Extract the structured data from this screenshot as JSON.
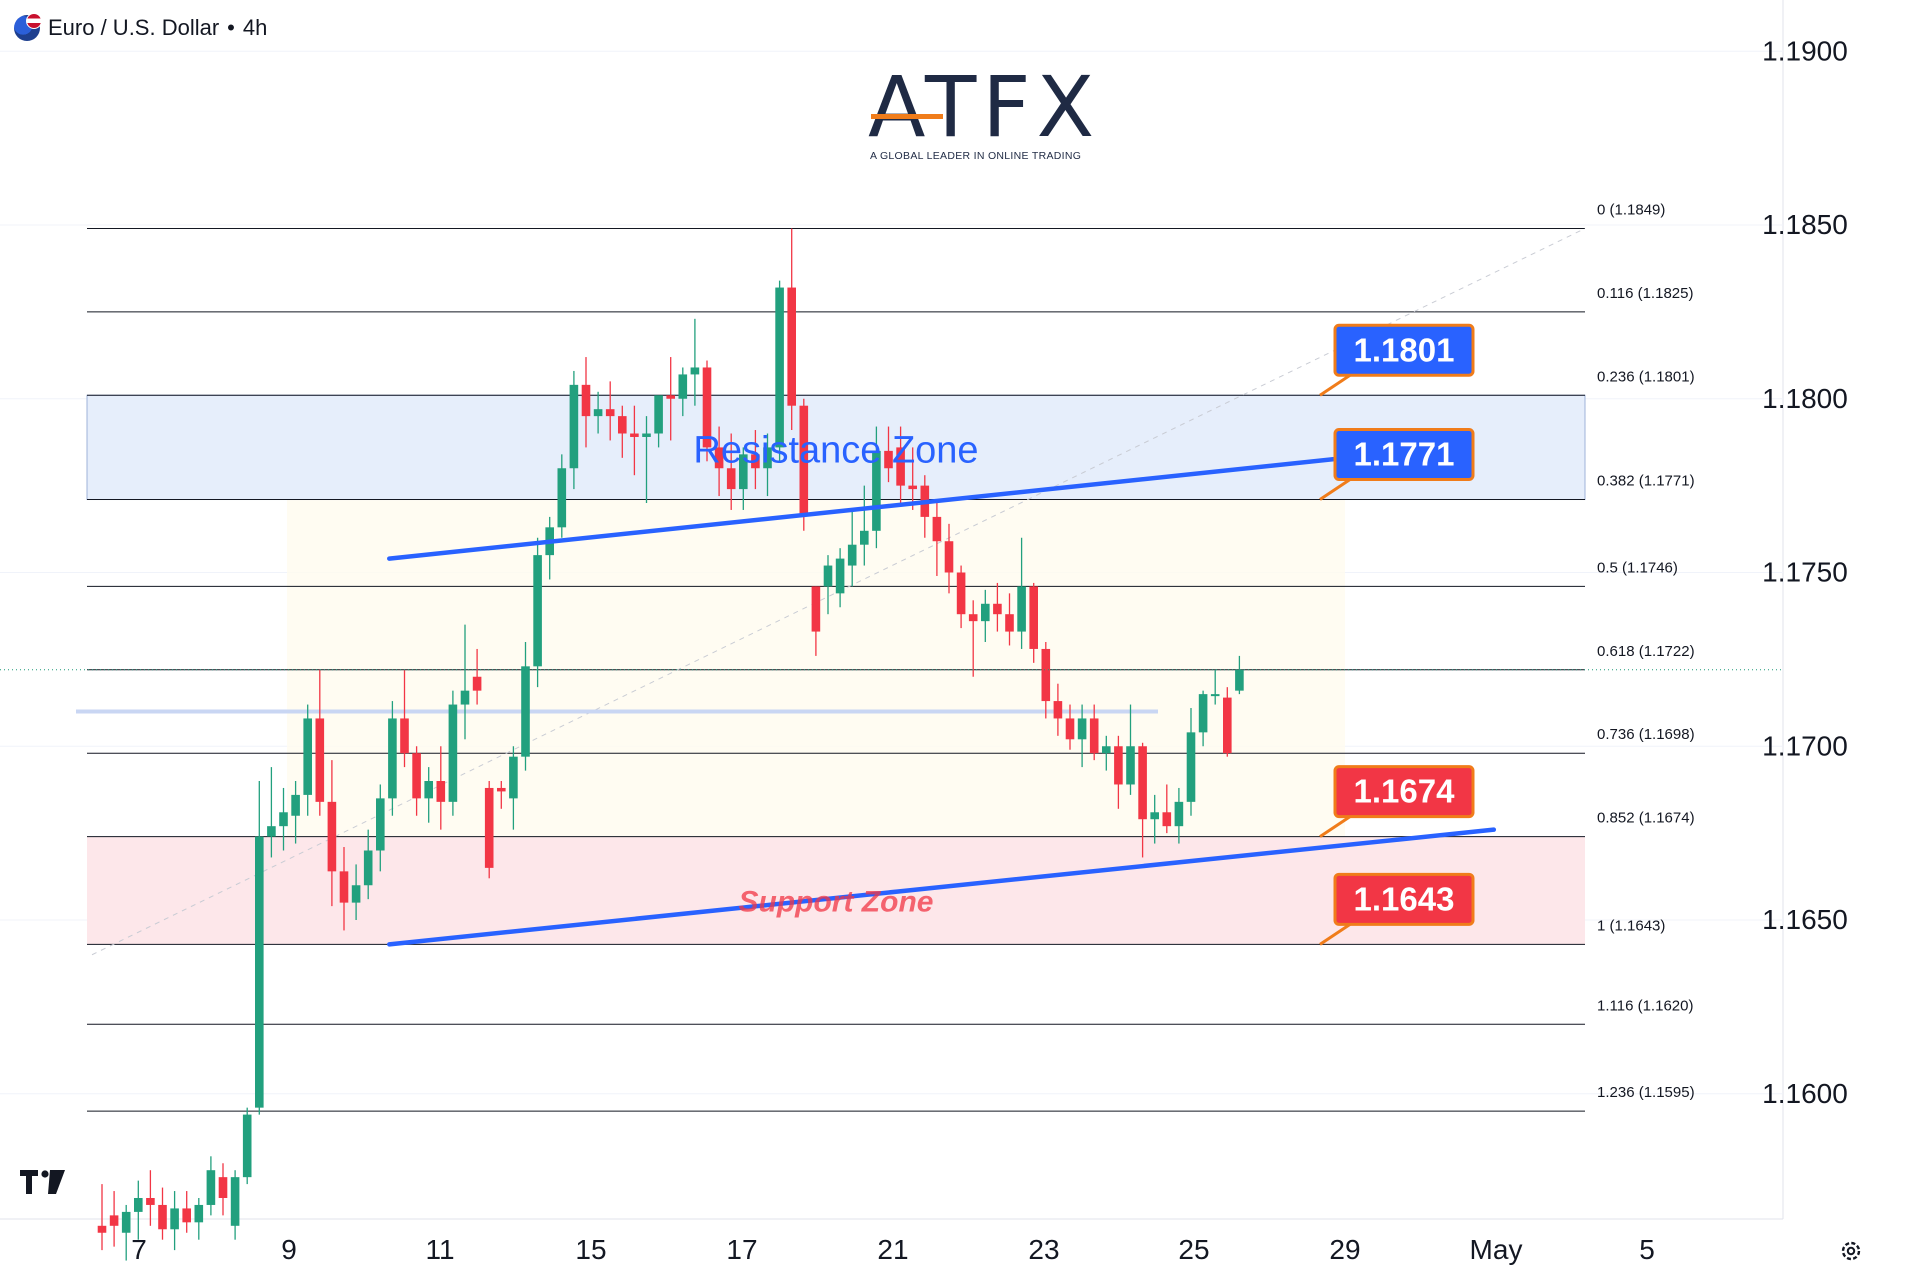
{
  "header": {
    "symbol_title": "Euro / U.S. Dollar",
    "separator": "•",
    "timeframe": "4h"
  },
  "logo": {
    "wordmark": "ATFX",
    "tagline": "A GLOBAL LEADER IN ONLINE TRADING"
  },
  "icons": [
    "eur-usd-flag-icon",
    "tradingview-logo-icon",
    "settings-gear-icon"
  ],
  "colors": {
    "bull": "#22a07e",
    "bear": "#f23645",
    "trendline": "#2962ff",
    "resistance_fill": "#e6eefb",
    "support_fill": "#fde7ea",
    "resistance_text": "#2962ff",
    "support_text": "#f23645",
    "callout_blue": "#2962ff",
    "callout_red": "#f23645",
    "callout_border": "#f07c1a"
  },
  "chart_data": {
    "type": "candlestick",
    "title": "Euro / U.S. Dollar • 4h",
    "y_axis": {
      "range": [
        1.1565,
        1.1913
      ],
      "ticks": [
        "1.1600",
        "1.1650",
        "1.1700",
        "1.1750",
        "1.1800",
        "1.1850",
        "1.1900"
      ],
      "position": "right"
    },
    "x_axis": {
      "ticks": [
        "7",
        "9",
        "11",
        "15",
        "17",
        "21",
        "23",
        "25",
        "29",
        "May",
        "5"
      ]
    },
    "current_price": 1.1722,
    "fibonacci": [
      {
        "level": "0",
        "price": 1.1849,
        "label": "0 (1.1849)"
      },
      {
        "level": "0.116",
        "price": 1.1825,
        "label": "0.116 (1.1825)"
      },
      {
        "level": "0.236",
        "price": 1.1801,
        "label": "0.236 (1.1801)"
      },
      {
        "level": "0.382",
        "price": 1.1771,
        "label": "0.382 (1.1771)"
      },
      {
        "level": "0.5",
        "price": 1.1746,
        "label": "0.5 (1.1746)"
      },
      {
        "level": "0.618",
        "price": 1.1722,
        "label": "0.618 (1.1722)"
      },
      {
        "level": "0.736",
        "price": 1.1698,
        "label": "0.736 (1.1698)"
      },
      {
        "level": "0.852",
        "price": 1.1674,
        "label": "0.852 (1.1674)"
      },
      {
        "level": "1",
        "price": 1.1643,
        "label": "1 (1.1643)"
      },
      {
        "level": "1.116",
        "price": 1.162,
        "label": "1.116 (1.1620)"
      },
      {
        "level": "1.236",
        "price": 1.1595,
        "label": "1.236 (1.1595)"
      }
    ],
    "zones": [
      {
        "name": "Resistance Zone",
        "label": "Resistance Zone",
        "from": 1.1771,
        "to": 1.1801
      },
      {
        "name": "Support Zone",
        "label": "Support Zone",
        "from": 1.1643,
        "to": 1.1674
      }
    ],
    "trendlines": [
      {
        "name": "upper",
        "start": {
          "x": 53.0,
          "y": 1.1754
        },
        "end": {
          "x": 224.0,
          "y": 1.1786
        }
      },
      {
        "name": "lower",
        "start": {
          "x": 53.0,
          "y": 1.1643
        },
        "end": {
          "x": 228.0,
          "y": 1.1676
        }
      }
    ],
    "horizontal_level": {
      "price": 1.171
    },
    "callouts": [
      {
        "label": "1.1801",
        "price": 1.1801,
        "color": "blue"
      },
      {
        "label": "1.1771",
        "price": 1.1771,
        "color": "blue"
      },
      {
        "label": "1.1674",
        "price": 1.1674,
        "color": "red"
      },
      {
        "label": "1.1643",
        "price": 1.1643,
        "color": "red"
      }
    ],
    "candles": [
      {
        "o": 1.1562,
        "h": 1.1574,
        "l": 1.1555,
        "c": 1.156
      },
      {
        "o": 1.1565,
        "h": 1.1572,
        "l": 1.1556,
        "c": 1.1562
      },
      {
        "o": 1.156,
        "h": 1.1568,
        "l": 1.1552,
        "c": 1.1566
      },
      {
        "o": 1.1566,
        "h": 1.1575,
        "l": 1.1558,
        "c": 1.157
      },
      {
        "o": 1.157,
        "h": 1.1578,
        "l": 1.1562,
        "c": 1.1568
      },
      {
        "o": 1.1568,
        "h": 1.1573,
        "l": 1.1558,
        "c": 1.1561
      },
      {
        "o": 1.1561,
        "h": 1.1572,
        "l": 1.1555,
        "c": 1.1567
      },
      {
        "o": 1.1567,
        "h": 1.1572,
        "l": 1.156,
        "c": 1.1563
      },
      {
        "o": 1.1563,
        "h": 1.157,
        "l": 1.1558,
        "c": 1.1568
      },
      {
        "o": 1.1568,
        "h": 1.1582,
        "l": 1.1565,
        "c": 1.1578
      },
      {
        "o": 1.1576,
        "h": 1.158,
        "l": 1.1565,
        "c": 1.157
      },
      {
        "o": 1.1562,
        "h": 1.1578,
        "l": 1.1558,
        "c": 1.1576
      },
      {
        "o": 1.1576,
        "h": 1.1596,
        "l": 1.1574,
        "c": 1.1594
      },
      {
        "o": 1.1596,
        "h": 1.169,
        "l": 1.1594,
        "c": 1.1674
      },
      {
        "o": 1.1674,
        "h": 1.1694,
        "l": 1.1668,
        "c": 1.1677
      },
      {
        "o": 1.1677,
        "h": 1.1688,
        "l": 1.167,
        "c": 1.1681
      },
      {
        "o": 1.168,
        "h": 1.169,
        "l": 1.1672,
        "c": 1.1686
      },
      {
        "o": 1.1686,
        "h": 1.1712,
        "l": 1.168,
        "c": 1.1708
      },
      {
        "o": 1.1708,
        "h": 1.1722,
        "l": 1.168,
        "c": 1.1684
      },
      {
        "o": 1.1684,
        "h": 1.1696,
        "l": 1.1654,
        "c": 1.1664
      },
      {
        "o": 1.1664,
        "h": 1.1671,
        "l": 1.1647,
        "c": 1.1655
      },
      {
        "o": 1.1655,
        "h": 1.1666,
        "l": 1.165,
        "c": 1.166
      },
      {
        "o": 1.166,
        "h": 1.1676,
        "l": 1.1656,
        "c": 1.167
      },
      {
        "o": 1.167,
        "h": 1.1689,
        "l": 1.1664,
        "c": 1.1685
      },
      {
        "o": 1.1685,
        "h": 1.1713,
        "l": 1.168,
        "c": 1.1708
      },
      {
        "o": 1.1708,
        "h": 1.1722,
        "l": 1.1694,
        "c": 1.1698
      },
      {
        "o": 1.1698,
        "h": 1.17,
        "l": 1.168,
        "c": 1.1685
      },
      {
        "o": 1.1685,
        "h": 1.1694,
        "l": 1.1678,
        "c": 1.169
      },
      {
        "o": 1.169,
        "h": 1.17,
        "l": 1.1676,
        "c": 1.1684
      },
      {
        "o": 1.1684,
        "h": 1.1716,
        "l": 1.168,
        "c": 1.1712
      },
      {
        "o": 1.1712,
        "h": 1.1735,
        "l": 1.1702,
        "c": 1.1716
      },
      {
        "o": 1.172,
        "h": 1.1728,
        "l": 1.1712,
        "c": 1.1716
      },
      {
        "o": 1.1688,
        "h": 1.169,
        "l": 1.1662,
        "c": 1.1665
      },
      {
        "o": 1.1688,
        "h": 1.169,
        "l": 1.1682,
        "c": 1.1687
      },
      {
        "o": 1.1685,
        "h": 1.17,
        "l": 1.1676,
        "c": 1.1697
      },
      {
        "o": 1.1697,
        "h": 1.173,
        "l": 1.1693,
        "c": 1.1723
      },
      {
        "o": 1.1723,
        "h": 1.176,
        "l": 1.1717,
        "c": 1.1755
      },
      {
        "o": 1.1755,
        "h": 1.1766,
        "l": 1.1748,
        "c": 1.1763
      },
      {
        "o": 1.1763,
        "h": 1.1784,
        "l": 1.176,
        "c": 1.178
      },
      {
        "o": 1.178,
        "h": 1.1808,
        "l": 1.1774,
        "c": 1.1804
      },
      {
        "o": 1.1804,
        "h": 1.1812,
        "l": 1.1786,
        "c": 1.1795
      },
      {
        "o": 1.1795,
        "h": 1.1802,
        "l": 1.179,
        "c": 1.1797
      },
      {
        "o": 1.1797,
        "h": 1.1805,
        "l": 1.1788,
        "c": 1.1795
      },
      {
        "o": 1.1795,
        "h": 1.1798,
        "l": 1.1783,
        "c": 1.179
      },
      {
        "o": 1.179,
        "h": 1.1798,
        "l": 1.1778,
        "c": 1.1789
      },
      {
        "o": 1.1789,
        "h": 1.1795,
        "l": 1.177,
        "c": 1.179
      },
      {
        "o": 1.179,
        "h": 1.18,
        "l": 1.1786,
        "c": 1.1801
      },
      {
        "o": 1.1801,
        "h": 1.1812,
        "l": 1.1788,
        "c": 1.18
      },
      {
        "o": 1.18,
        "h": 1.1809,
        "l": 1.1795,
        "c": 1.1807
      },
      {
        "o": 1.1807,
        "h": 1.1823,
        "l": 1.1798,
        "c": 1.1809
      },
      {
        "o": 1.1809,
        "h": 1.1811,
        "l": 1.1782,
        "c": 1.1786
      },
      {
        "o": 1.1786,
        "h": 1.1792,
        "l": 1.1772,
        "c": 1.178
      },
      {
        "o": 1.178,
        "h": 1.179,
        "l": 1.1768,
        "c": 1.1774
      },
      {
        "o": 1.1774,
        "h": 1.1786,
        "l": 1.1768,
        "c": 1.1784
      },
      {
        "o": 1.1784,
        "h": 1.1791,
        "l": 1.1774,
        "c": 1.178
      },
      {
        "o": 1.178,
        "h": 1.179,
        "l": 1.1772,
        "c": 1.1786
      },
      {
        "o": 1.1786,
        "h": 1.1834,
        "l": 1.1782,
        "c": 1.1832
      },
      {
        "o": 1.1832,
        "h": 1.1849,
        "l": 1.1791,
        "c": 1.1798
      },
      {
        "o": 1.1798,
        "h": 1.18,
        "l": 1.1762,
        "c": 1.1767
      },
      {
        "o": 1.1746,
        "h": 1.1746,
        "l": 1.1726,
        "c": 1.1733
      },
      {
        "o": 1.1746,
        "h": 1.1755,
        "l": 1.1738,
        "c": 1.1752
      },
      {
        "o": 1.1744,
        "h": 1.1757,
        "l": 1.174,
        "c": 1.1754
      },
      {
        "o": 1.1752,
        "h": 1.1768,
        "l": 1.1746,
        "c": 1.1758
      },
      {
        "o": 1.1758,
        "h": 1.1775,
        "l": 1.1752,
        "c": 1.1762
      },
      {
        "o": 1.1762,
        "h": 1.1792,
        "l": 1.1757,
        "c": 1.1785
      },
      {
        "o": 1.1785,
        "h": 1.1792,
        "l": 1.1776,
        "c": 1.178
      },
      {
        "o": 1.1786,
        "h": 1.1792,
        "l": 1.177,
        "c": 1.1775
      },
      {
        "o": 1.1775,
        "h": 1.1786,
        "l": 1.1768,
        "c": 1.1774
      },
      {
        "o": 1.1775,
        "h": 1.1778,
        "l": 1.176,
        "c": 1.1766
      },
      {
        "o": 1.1766,
        "h": 1.177,
        "l": 1.1749,
        "c": 1.1759
      },
      {
        "o": 1.1759,
        "h": 1.1764,
        "l": 1.1744,
        "c": 1.175
      },
      {
        "o": 1.175,
        "h": 1.1752,
        "l": 1.1734,
        "c": 1.1738
      },
      {
        "o": 1.1738,
        "h": 1.1742,
        "l": 1.172,
        "c": 1.1736
      },
      {
        "o": 1.1736,
        "h": 1.1745,
        "l": 1.173,
        "c": 1.1741
      },
      {
        "o": 1.1741,
        "h": 1.1747,
        "l": 1.1733,
        "c": 1.1738
      },
      {
        "o": 1.1738,
        "h": 1.1744,
        "l": 1.1729,
        "c": 1.1733
      },
      {
        "o": 1.1733,
        "h": 1.176,
        "l": 1.1728,
        "c": 1.1746
      },
      {
        "o": 1.1746,
        "h": 1.1747,
        "l": 1.1724,
        "c": 1.1728
      },
      {
        "o": 1.1728,
        "h": 1.173,
        "l": 1.1708,
        "c": 1.1713
      },
      {
        "o": 1.1713,
        "h": 1.1718,
        "l": 1.1703,
        "c": 1.1708
      },
      {
        "o": 1.1708,
        "h": 1.1712,
        "l": 1.1699,
        "c": 1.1702
      },
      {
        "o": 1.1702,
        "h": 1.1712,
        "l": 1.1694,
        "c": 1.1708
      },
      {
        "o": 1.1708,
        "h": 1.1712,
        "l": 1.1696,
        "c": 1.1698
      },
      {
        "o": 1.1698,
        "h": 1.1703,
        "l": 1.1693,
        "c": 1.17
      },
      {
        "o": 1.17,
        "h": 1.1703,
        "l": 1.1682,
        "c": 1.1689
      },
      {
        "o": 1.1689,
        "h": 1.1712,
        "l": 1.1686,
        "c": 1.17
      },
      {
        "o": 1.17,
        "h": 1.1701,
        "l": 1.1668,
        "c": 1.1679
      },
      {
        "o": 1.1679,
        "h": 1.1686,
        "l": 1.1672,
        "c": 1.1681
      },
      {
        "o": 1.1681,
        "h": 1.1689,
        "l": 1.1675,
        "c": 1.1677
      },
      {
        "o": 1.1677,
        "h": 1.1688,
        "l": 1.1672,
        "c": 1.1684
      },
      {
        "o": 1.1684,
        "h": 1.1711,
        "l": 1.168,
        "c": 1.1704
      },
      {
        "o": 1.1704,
        "h": 1.1716,
        "l": 1.17,
        "c": 1.1715
      },
      {
        "o": 1.1715,
        "h": 1.1722,
        "l": 1.1712,
        "c": 1.1715
      },
      {
        "o": 1.1714,
        "h": 1.1717,
        "l": 1.1697,
        "c": 1.1698
      },
      {
        "o": 1.1716,
        "h": 1.1726,
        "l": 1.1715,
        "c": 1.1722
      }
    ]
  },
  "labels": {
    "resistance_zone": "Resistance Zone",
    "support_zone": "Support Zone"
  }
}
